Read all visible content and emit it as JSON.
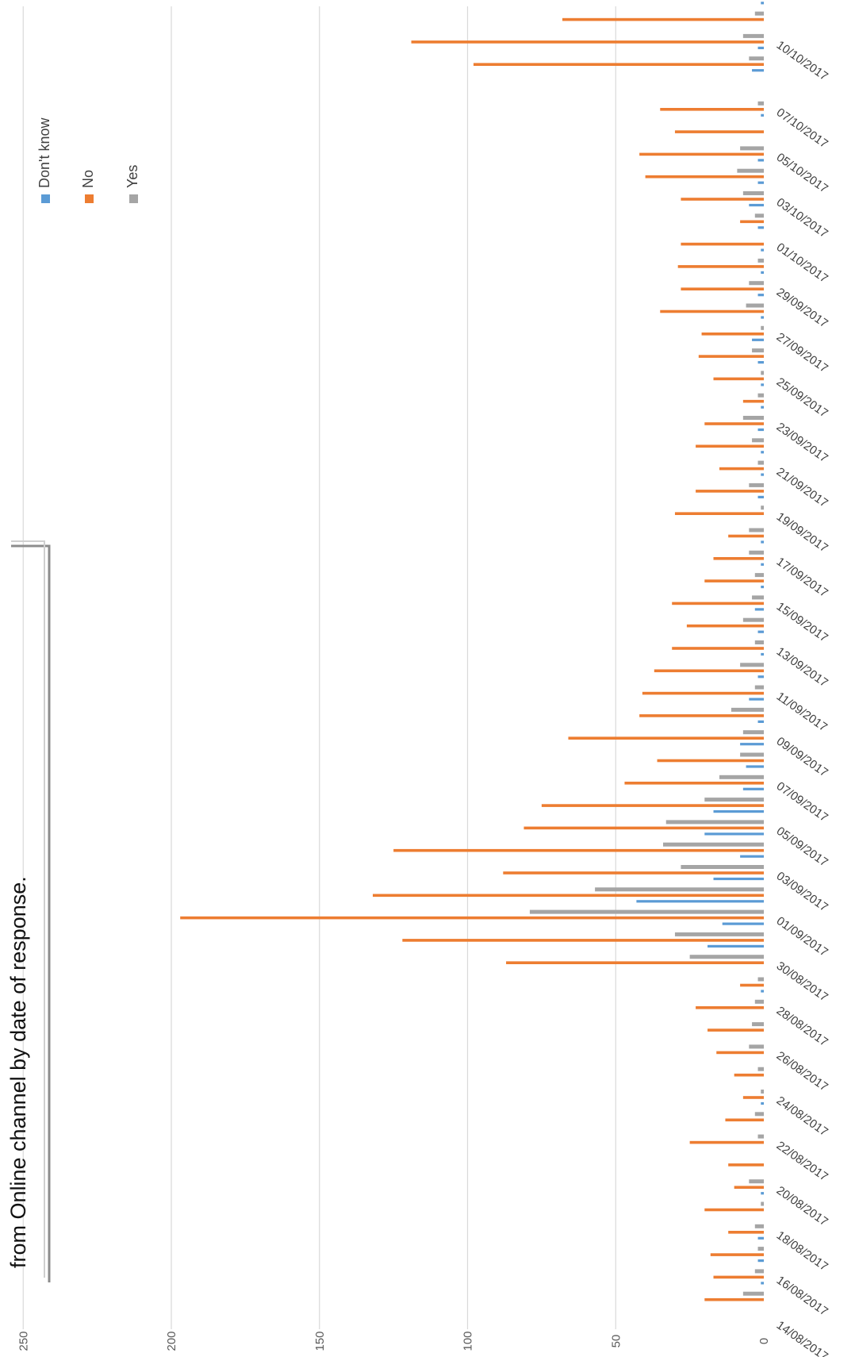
{
  "title": "from Online channel by date of response.",
  "colors": {
    "dont_know": "#5B9BD5",
    "no": "#ED7D31",
    "yes": "#A5A5A5",
    "grid": "#D9D9D9"
  },
  "chart_data": {
    "type": "bar",
    "orientation": "rotated-90-clockwise",
    "title": "from Online channel by date of response.",
    "xlabel": "",
    "ylabel": "",
    "ylim": [
      0,
      250
    ],
    "yticks": [
      0,
      50,
      100,
      150,
      200,
      250
    ],
    "grid": true,
    "legend_position": "top-right",
    "categories": [
      "14/08/2017",
      "15/08/2017",
      "16/08/2017",
      "17/08/2017",
      "18/08/2017",
      "19/08/2017",
      "20/08/2017",
      "21/08/2017",
      "22/08/2017",
      "23/08/2017",
      "24/08/2017",
      "25/08/2017",
      "26/08/2017",
      "27/08/2017",
      "28/08/2017",
      "29/08/2017",
      "30/08/2017",
      "31/08/2017",
      "01/09/2017",
      "02/09/2017",
      "03/09/2017",
      "04/09/2017",
      "05/09/2017",
      "06/09/2017",
      "07/09/2017",
      "08/09/2017",
      "09/09/2017",
      "10/09/2017",
      "11/09/2017",
      "12/09/2017",
      "13/09/2017",
      "14/09/2017",
      "15/09/2017",
      "16/09/2017",
      "17/09/2017",
      "18/09/2017",
      "19/09/2017",
      "20/09/2017",
      "21/09/2017",
      "22/09/2017",
      "23/09/2017",
      "24/09/2017",
      "25/09/2017",
      "26/09/2017",
      "27/09/2017",
      "28/09/2017",
      "29/09/2017",
      "30/09/2017",
      "01/10/2017",
      "02/10/2017",
      "03/10/2017",
      "04/10/2017",
      "05/10/2017",
      "06/10/2017",
      "07/10/2017",
      "08/10/2017",
      "09/10/2017",
      "10/10/2017",
      "11/10/2017",
      "12/10/2017",
      "13/10/2017"
    ],
    "series": [
      {
        "name": "Don't know",
        "values": [
          0,
          0,
          1,
          2,
          2,
          0,
          1,
          0,
          0,
          0,
          1,
          0,
          0,
          0,
          0,
          1,
          0,
          19,
          14,
          43,
          17,
          8,
          20,
          17,
          7,
          6,
          8,
          2,
          5,
          2,
          1,
          2,
          3,
          1,
          1,
          1,
          0,
          2,
          1,
          1,
          2,
          1,
          1,
          2,
          4,
          1,
          2,
          1,
          1,
          2,
          5,
          2,
          2,
          0,
          1,
          0,
          4,
          2,
          0,
          1,
          0
        ]
      },
      {
        "name": "No",
        "values": [
          0,
          20,
          17,
          18,
          12,
          20,
          10,
          12,
          25,
          13,
          7,
          10,
          16,
          19,
          23,
          8,
          87,
          122,
          197,
          132,
          88,
          125,
          81,
          75,
          47,
          36,
          66,
          42,
          41,
          37,
          31,
          26,
          31,
          20,
          17,
          12,
          30,
          23,
          15,
          23,
          20,
          7,
          17,
          22,
          21,
          35,
          28,
          29,
          28,
          8,
          28,
          40,
          42,
          30,
          35,
          0,
          98,
          119,
          68,
          12,
          0
        ]
      },
      {
        "name": "Yes",
        "values": [
          0,
          7,
          3,
          2,
          3,
          1,
          5,
          0,
          2,
          3,
          1,
          2,
          5,
          4,
          3,
          2,
          25,
          30,
          79,
          57,
          28,
          34,
          33,
          20,
          15,
          8,
          7,
          11,
          3,
          8,
          3,
          7,
          4,
          3,
          5,
          5,
          1,
          5,
          2,
          4,
          7,
          2,
          1,
          4,
          1,
          6,
          5,
          2,
          0,
          3,
          7,
          9,
          8,
          0,
          2,
          0,
          5,
          7,
          3,
          1,
          0
        ]
      }
    ]
  },
  "ticks": [
    "0",
    "50",
    "100",
    "150",
    "200",
    "250"
  ],
  "date_labels": [
    "14/08/2017",
    "16/08/2017",
    "18/08/2017",
    "20/08/2017",
    "22/08/2017",
    "24/08/2017",
    "26/08/2017",
    "28/08/2017",
    "30/08/2017",
    "01/09/2017",
    "03/09/2017",
    "05/09/2017",
    "07/09/2017",
    "09/09/2017",
    "11/09/2017",
    "13/09/2017",
    "15/09/2017",
    "17/09/2017",
    "19/09/2017",
    "21/09/2017",
    "23/09/2017",
    "25/09/2017",
    "27/09/2017",
    "29/09/2017",
    "01/10/2017",
    "03/10/2017",
    "05/10/2017",
    "07/10/2017",
    "10/10/2017"
  ],
  "legend": [
    "Don't know",
    "No",
    "Yes"
  ]
}
